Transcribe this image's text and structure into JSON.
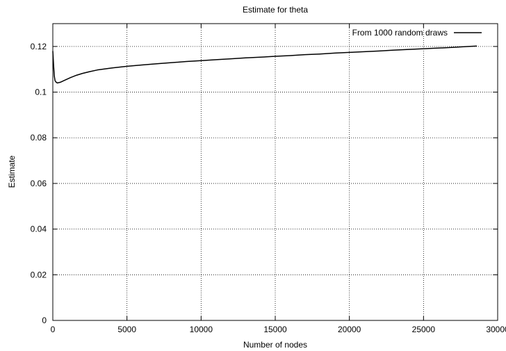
{
  "chart_data": {
    "type": "line",
    "title": "Estimate for theta",
    "xlabel": "Number of nodes",
    "ylabel": "Estimate",
    "xlim": [
      0,
      30000
    ],
    "ylim": [
      0,
      0.13
    ],
    "x_ticks": [
      0,
      5000,
      10000,
      15000,
      20000,
      25000,
      30000
    ],
    "y_ticks": [
      0,
      0.02,
      0.04,
      0.06,
      0.08,
      0.1,
      0.12
    ],
    "x_tick_labels": [
      "0",
      "5000",
      "10000",
      "15000",
      "20000",
      "25000",
      "30000"
    ],
    "y_tick_labels": [
      "0",
      "0.02",
      "0.04",
      "0.06",
      "0.08",
      "0.1",
      "0.12"
    ],
    "grid": true,
    "legend_position": "top-right",
    "series": [
      {
        "name": "From 1000 random draws",
        "color": "#000000",
        "x": [
          0,
          50,
          100,
          150,
          200,
          300,
          500,
          800,
          1200,
          1600,
          2000,
          2500,
          3000,
          4000,
          5000,
          6000,
          7000,
          8000,
          9000,
          10000,
          11000,
          12000,
          13000,
          14000,
          15000,
          16000,
          17000,
          18000,
          19000,
          20000,
          21000,
          22000,
          23000,
          24000,
          25000,
          26000,
          27000,
          28000,
          28600
        ],
        "y": [
          0.118,
          0.112,
          0.107,
          0.105,
          0.1045,
          0.104,
          0.1043,
          0.1052,
          0.1064,
          0.1074,
          0.1082,
          0.109,
          0.1097,
          0.1106,
          0.1113,
          0.1119,
          0.1124,
          0.1129,
          0.1134,
          0.1138,
          0.1142,
          0.1146,
          0.115,
          0.1153,
          0.1157,
          0.116,
          0.1164,
          0.1167,
          0.1171,
          0.1174,
          0.1177,
          0.118,
          0.1184,
          0.1187,
          0.119,
          0.1193,
          0.1196,
          0.12,
          0.1202
        ]
      }
    ]
  }
}
